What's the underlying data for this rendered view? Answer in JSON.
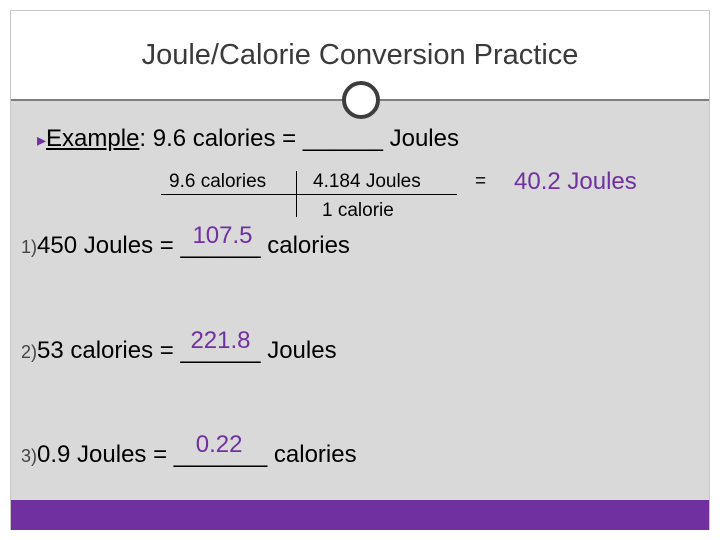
{
  "title": "Joule/Calorie Conversion Practice",
  "example": {
    "label": "Example",
    "statement_rest": ":  9.6 calories = ______ Joules",
    "numerator_left": "9.6 calories",
    "numerator_right": "4.184 Joules",
    "denominator_right": "1  calorie",
    "equals": "=",
    "answer": "40.2 Joules"
  },
  "problems": [
    {
      "number": "1)",
      "left": "450 Joules = ",
      "blank": "______",
      "answer": "107.5",
      "unit": " calories"
    },
    {
      "number": "2)",
      "left": "53 calories = ",
      "blank": "______",
      "answer": "221.8",
      "unit": " Joules"
    },
    {
      "number": "3)",
      "left": "0.9 Joules = ",
      "blank": "_______",
      "answer": "0.22",
      "unit": " calories"
    }
  ],
  "colors": {
    "accent": "#7030a0",
    "background": "#d9d9d9"
  }
}
